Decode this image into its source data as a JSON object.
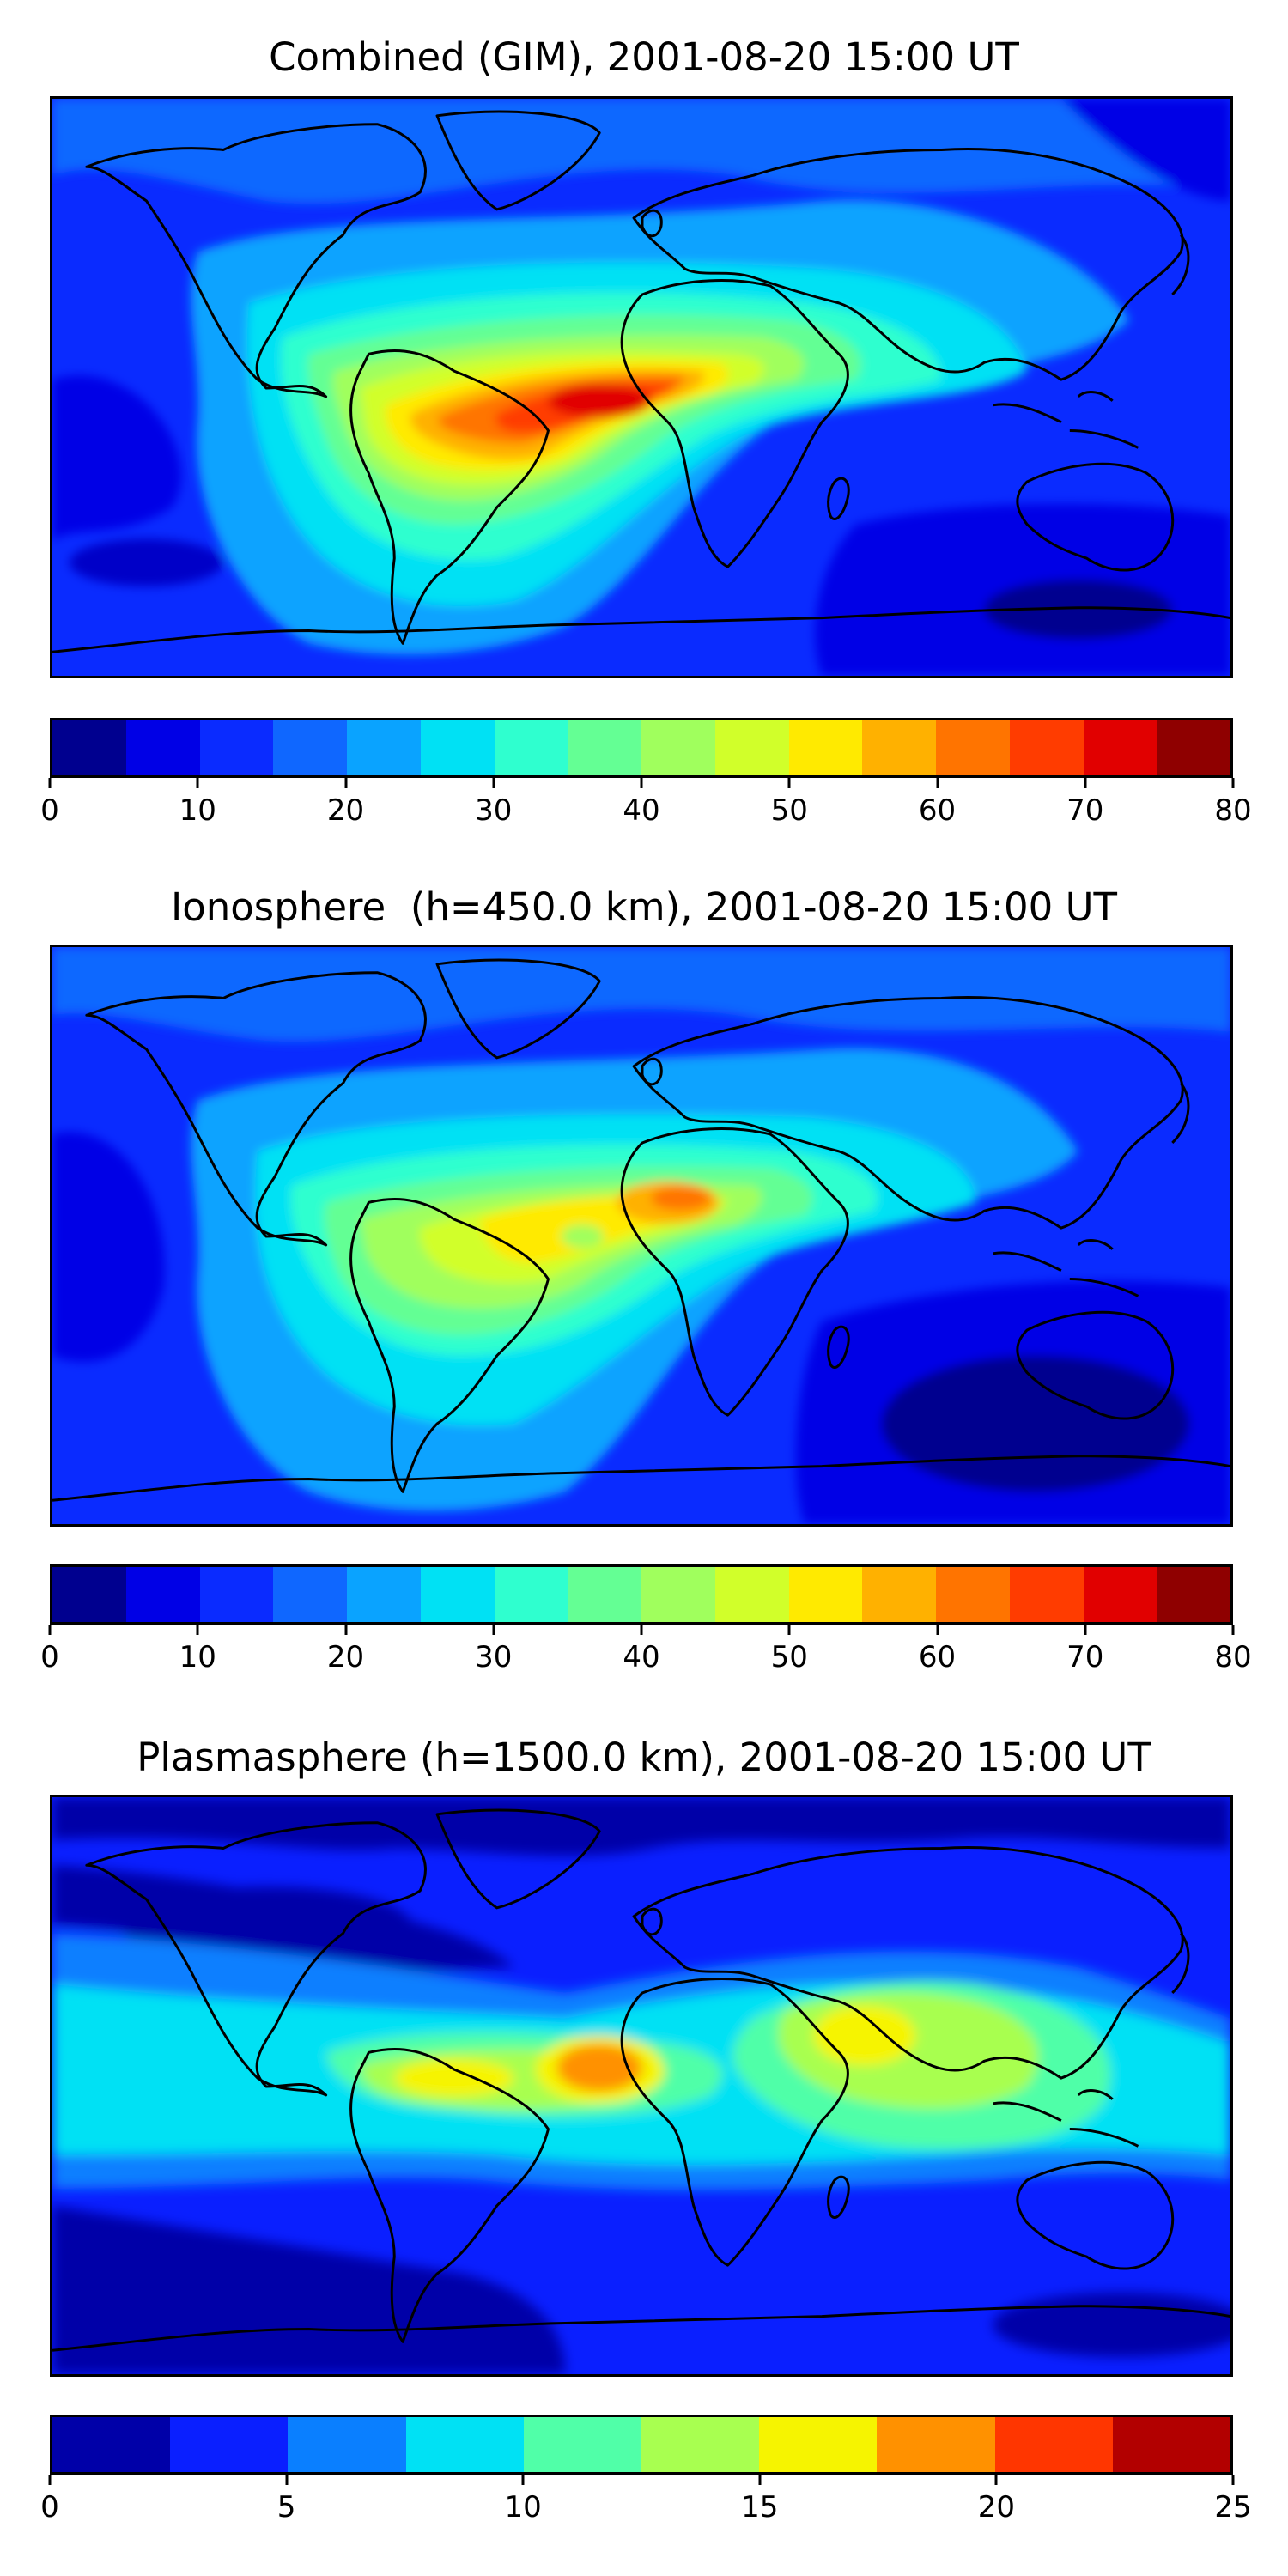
{
  "panels": [
    {
      "title": "Combined (GIM), 2001-08-20 15:00 UT",
      "colorbar": {
        "min": 0,
        "max": 80,
        "step": 5,
        "tick_labels": [
          "0",
          "10",
          "20",
          "30",
          "40",
          "50",
          "60",
          "70",
          "80"
        ],
        "colors": [
          "#00008f",
          "#0000e6",
          "#0a2bff",
          "#0f67ff",
          "#0aa3ff",
          "#00e1f4",
          "#2fffcf",
          "#64ff94",
          "#a0ff5d",
          "#d1ff2a",
          "#ffea00",
          "#ffb100",
          "#ff7400",
          "#ff3c00",
          "#e10000",
          "#8f0000"
        ]
      }
    },
    {
      "title": "Ionosphere  (h=450.0 km), 2001-08-20 15:00 UT",
      "colorbar": {
        "min": 0,
        "max": 80,
        "step": 5,
        "tick_labels": [
          "0",
          "10",
          "20",
          "30",
          "40",
          "50",
          "60",
          "70",
          "80"
        ],
        "colors": [
          "#00008f",
          "#0000e6",
          "#0a2bff",
          "#0f67ff",
          "#0aa3ff",
          "#00e1f4",
          "#2fffcf",
          "#64ff94",
          "#a0ff5d",
          "#d1ff2a",
          "#ffea00",
          "#ffb100",
          "#ff7400",
          "#ff3c00",
          "#e10000",
          "#8f0000"
        ]
      }
    },
    {
      "title": "Plasmasphere (h=1500.0 km), 2001-08-20 15:00 UT",
      "colorbar": {
        "min": 0,
        "max": 25,
        "step": 2.5,
        "tick_labels": [
          "0",
          "5",
          "10",
          "15",
          "20",
          "25"
        ],
        "colors": [
          "#0000a8",
          "#0a1fff",
          "#0a7fff",
          "#00e1f4",
          "#50ffa8",
          "#a8ff50",
          "#f6f400",
          "#ff9100",
          "#ff3600",
          "#b20000"
        ]
      }
    }
  ]
}
